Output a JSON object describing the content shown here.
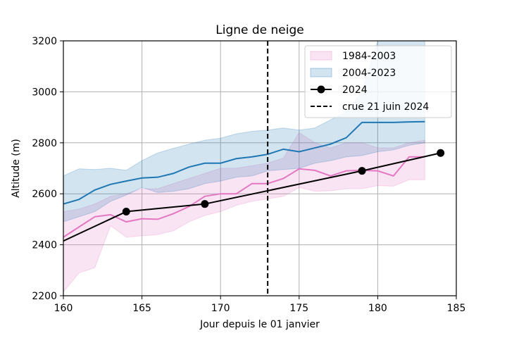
{
  "chart_data": {
    "type": "line",
    "title": "Ligne de neige",
    "xlabel": "Jour depuis le 01 janvier",
    "ylabel": "Altitude (m)",
    "xlim": [
      160,
      185
    ],
    "ylim": [
      2200,
      3200
    ],
    "xticks": [
      160,
      165,
      170,
      175,
      180,
      185
    ],
    "yticks": [
      2200,
      2400,
      2600,
      2800,
      3000,
      3200
    ],
    "grid": true,
    "legend_position": "top-right",
    "bands": [
      {
        "name": "1984-2003",
        "color": "#e377c2",
        "x": [
          160,
          161,
          162,
          163,
          164,
          165,
          166,
          167,
          168,
          169,
          170,
          171,
          172,
          173,
          174,
          175,
          176,
          177,
          178,
          179,
          180,
          181,
          182,
          183
        ],
        "median": [
          2430,
          2470,
          2510,
          2518,
          2490,
          2502,
          2500,
          2522,
          2550,
          2590,
          2600,
          2600,
          2640,
          2640,
          2660,
          2698,
          2692,
          2670,
          2690,
          2692,
          2690,
          2670,
          2745,
          2745
        ],
        "lower": [
          2215,
          2290,
          2310,
          2475,
          2430,
          2435,
          2440,
          2455,
          2490,
          2515,
          2530,
          2555,
          2570,
          2580,
          2590,
          2625,
          2610,
          2612,
          2620,
          2620,
          2632,
          2630,
          2655,
          2655
        ],
        "upper": [
          2530,
          2540,
          2560,
          2590,
          2600,
          2620,
          2620,
          2640,
          2660,
          2680,
          2700,
          2700,
          2710,
          2720,
          2740,
          2840,
          2800,
          2780,
          2800,
          2800,
          2780,
          2780,
          2800,
          2810
        ]
      },
      {
        "name": "2004-2023",
        "color": "#1f77b4",
        "x": [
          160,
          161,
          162,
          163,
          164,
          165,
          166,
          167,
          168,
          169,
          170,
          171,
          172,
          173,
          174,
          175,
          176,
          177,
          178,
          179,
          180,
          181,
          182,
          183
        ],
        "median": [
          2560,
          2578,
          2615,
          2637,
          2650,
          2662,
          2665,
          2680,
          2705,
          2720,
          2720,
          2738,
          2745,
          2755,
          2775,
          2765,
          2780,
          2795,
          2820,
          2880,
          2880,
          2880,
          2882,
          2883
        ],
        "lower": [
          2490,
          2510,
          2530,
          2570,
          2595,
          2625,
          2605,
          2610,
          2620,
          2640,
          2650,
          2665,
          2670,
          2690,
          2695,
          2700,
          2720,
          2730,
          2745,
          2750,
          2765,
          2772,
          2790,
          2800
        ],
        "upper": [
          2670,
          2698,
          2695,
          2700,
          2692,
          2730,
          2760,
          2778,
          2795,
          2810,
          2818,
          2835,
          2845,
          2850,
          2858,
          2850,
          2858,
          2890,
          2920,
          3000,
          3200,
          3200,
          3200,
          3200
        ]
      }
    ],
    "series": [
      {
        "name": "2024",
        "color": "#000000",
        "marker": "circle",
        "x": [
          164,
          169,
          179,
          184
        ],
        "y": [
          2530,
          2560,
          2690,
          2760
        ],
        "line_x": [
          160,
          164,
          169,
          179,
          184
        ],
        "line_y": [
          2415,
          2530,
          2560,
          2690,
          2760
        ]
      }
    ],
    "vlines": [
      {
        "name": "crue 21 juin 2024",
        "x": 173,
        "color": "#000000",
        "style": "dashed"
      }
    ]
  }
}
